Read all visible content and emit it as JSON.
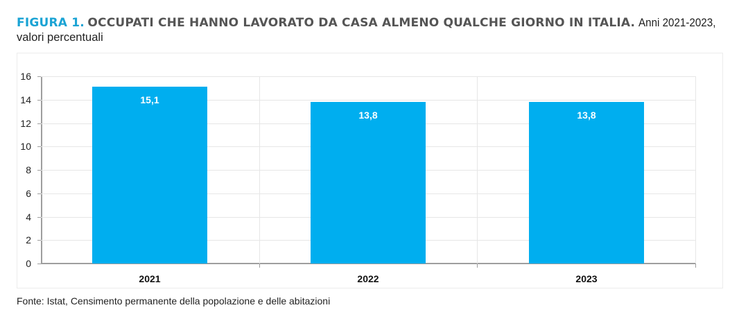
{
  "header": {
    "figure_label": "FIGURA 1.",
    "title": "OCCUPATI CHE HANNO LAVORATO DA CASA ALMENO QUALCHE GIORNO IN ITALIA.",
    "subtitle_line1": "Anni 2021-2023,",
    "subtitle_line2": "valori percentuali"
  },
  "colors": {
    "bar": "#00AEEF",
    "figure_label": "#1AA3D4",
    "title": "#555555"
  },
  "footer": {
    "source": "Fonte: Istat, Censimento permanente della popolazione e delle abitazioni"
  },
  "chart_data": {
    "type": "bar",
    "title": "OCCUPATI CHE HANNO LAVORATO DA CASA ALMENO QUALCHE GIORNO IN ITALIA. Anni 2021-2023, valori percentuali",
    "categories": [
      "2021",
      "2022",
      "2023"
    ],
    "values": [
      15.1,
      13.8,
      13.8
    ],
    "value_labels": [
      "15,1",
      "13,8",
      "13,8"
    ],
    "xlabel": "",
    "ylabel": "",
    "ylim": [
      0,
      16
    ],
    "yticks": [
      "0",
      "2",
      "4",
      "6",
      "8",
      "10",
      "12",
      "14",
      "16"
    ],
    "grid": true,
    "legend": null
  }
}
